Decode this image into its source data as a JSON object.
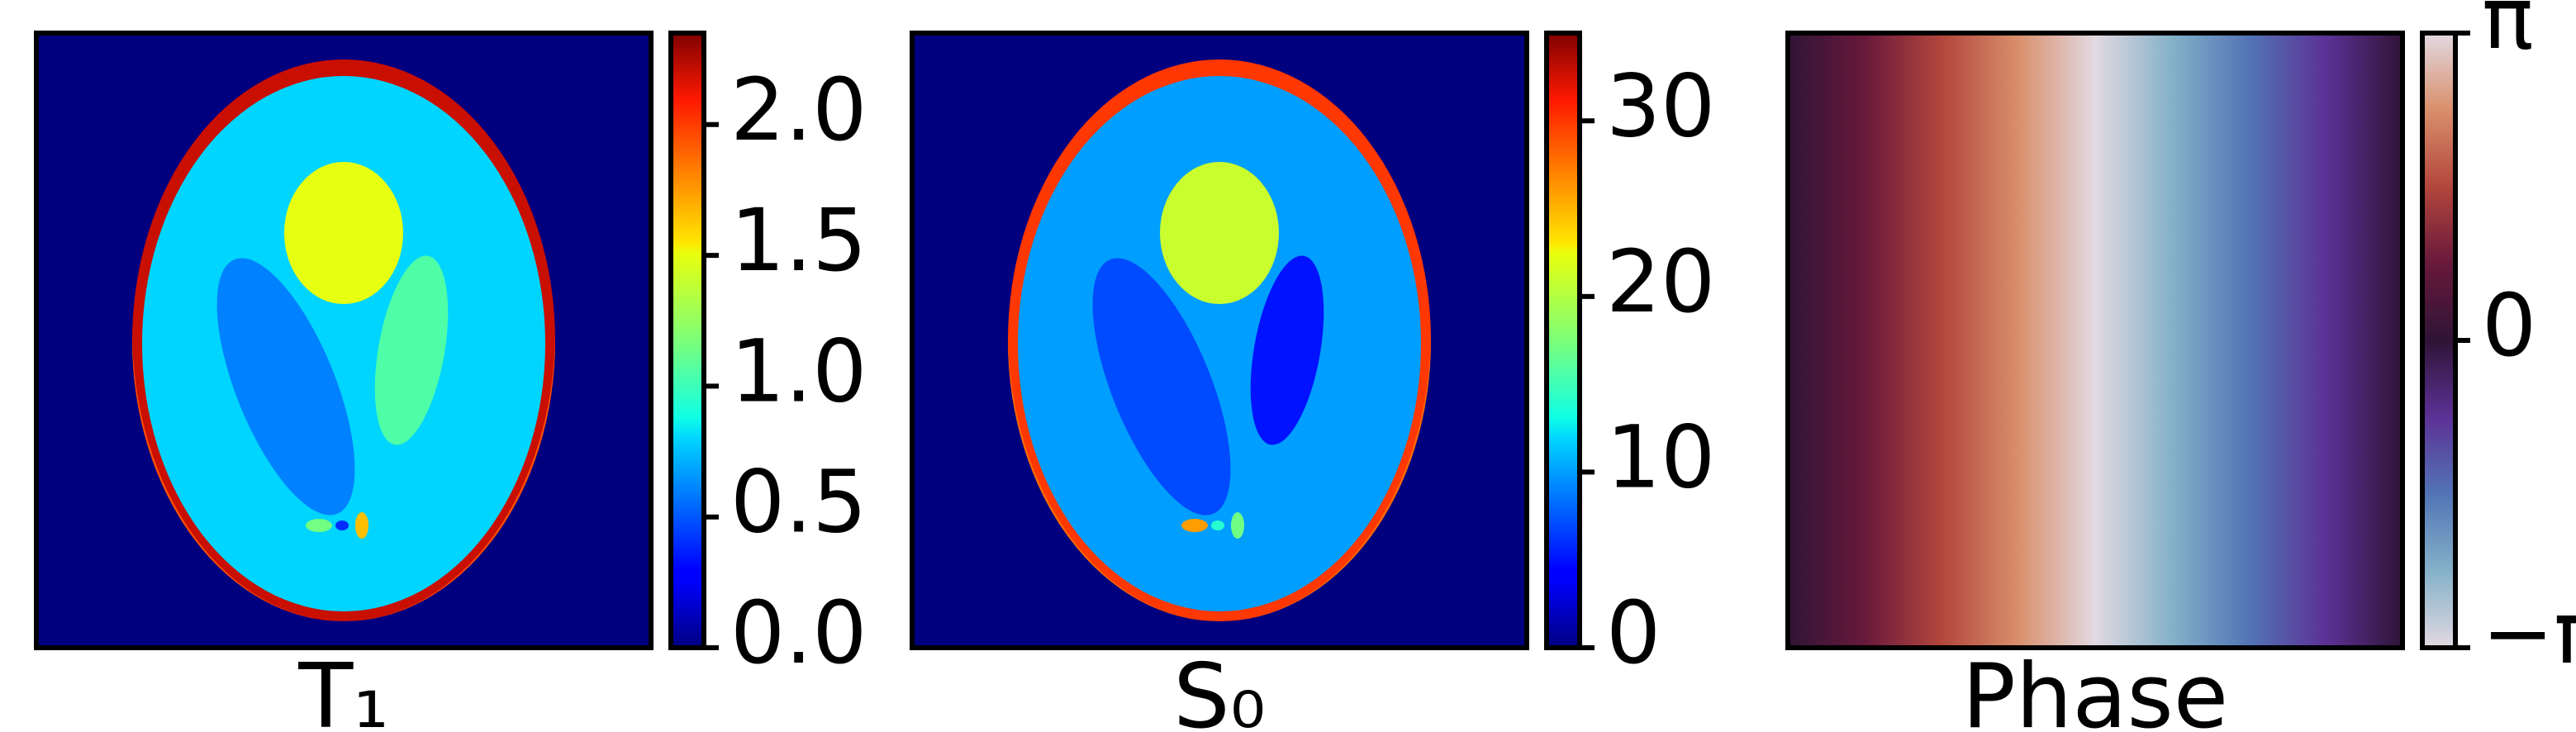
{
  "chart_data": [
    {
      "type": "heatmap",
      "label": "T₁",
      "colormap": "jet",
      "colorbar": {
        "range": [
          0,
          2.35
        ],
        "ticks": [
          0.0,
          0.5,
          1.0,
          1.5,
          2.0
        ],
        "tick_labels": [
          "0.0",
          "0.5",
          "1.0",
          "1.5",
          "2.0"
        ]
      },
      "regions": [
        {
          "name": "background",
          "value": 0.0
        },
        {
          "name": "skull-outer",
          "value": 2.2
        },
        {
          "name": "skull-lower",
          "value": 1.95
        },
        {
          "name": "brain",
          "value": 0.8
        },
        {
          "name": "upper-ellipse",
          "value": 1.5
        },
        {
          "name": "left-ellipse",
          "value": 0.6
        },
        {
          "name": "right-ellipse",
          "value": 1.05
        },
        {
          "name": "small-1",
          "value": 1.15
        },
        {
          "name": "small-2",
          "value": 0.4
        },
        {
          "name": "small-3",
          "value": 1.65
        }
      ]
    },
    {
      "type": "heatmap",
      "label": "S₀",
      "colormap": "jet",
      "colorbar": {
        "range": [
          0,
          35
        ],
        "ticks": [
          0,
          10,
          20,
          30
        ],
        "tick_labels": [
          "0",
          "10",
          "20",
          "30"
        ]
      },
      "regions": [
        {
          "name": "background",
          "value": 0
        },
        {
          "name": "skull-outer",
          "value": 30
        },
        {
          "name": "skull-lower",
          "value": 28
        },
        {
          "name": "brain",
          "value": 10
        },
        {
          "name": "upper-ellipse",
          "value": 21
        },
        {
          "name": "left-ellipse",
          "value": 7
        },
        {
          "name": "right-ellipse",
          "value": 5
        },
        {
          "name": "small-1",
          "value": 26
        },
        {
          "name": "small-2",
          "value": 14
        },
        {
          "name": "small-3",
          "value": 17
        }
      ]
    },
    {
      "type": "heatmap",
      "label": "Phase",
      "colormap": "twilight",
      "pattern": "linear ramp along x from −π to π",
      "colorbar": {
        "range": [
          -3.1416,
          3.1416
        ],
        "ticks": [
          -3.1416,
          0,
          3.1416
        ],
        "tick_labels": [
          "−π",
          "0",
          "π"
        ]
      }
    }
  ]
}
